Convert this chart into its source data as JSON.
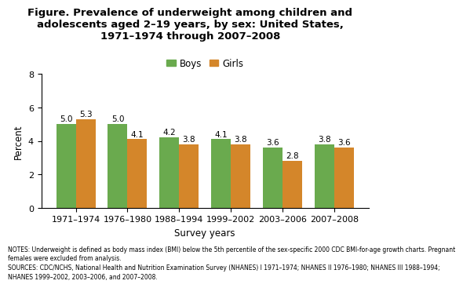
{
  "title": "Figure. Prevalence of underweight among children and\nadolescents aged 2–19 years, by sex: United States,\n1971–1974 through 2007–2008",
  "categories": [
    "1971–1974",
    "1976–1980",
    "1988–1994",
    "1999–2002",
    "2003–2006",
    "2007–2008"
  ],
  "boys": [
    5.0,
    5.0,
    4.2,
    4.1,
    3.6,
    3.8
  ],
  "girls": [
    5.3,
    4.1,
    3.8,
    3.8,
    2.8,
    3.6
  ],
  "boys_color": "#6aaa4e",
  "girls_color": "#d4862a",
  "xlabel": "Survey years",
  "ylabel": "Percent",
  "ylim": [
    0,
    8
  ],
  "yticks": [
    0,
    2,
    4,
    6,
    8
  ],
  "notes": "NOTES: Underweight is defined as body mass index (BMI) below the 5th percentile of the sex-specific 2000 CDC BMI-for-age growth charts. Pregnant\nfemales were excluded from analysis.\nSOURCES: CDC/NCHS, National Health and Nutrition Examination Survey (NHANES) I 1971–1974; NHANES II 1976–1980; NHANES III 1988–1994;\nNHANES 1999–2002, 2003–2006, and 2007–2008.",
  "bar_width": 0.38,
  "title_fontsize": 9.5,
  "label_fontsize": 8.5,
  "tick_fontsize": 8,
  "note_fontsize": 5.5,
  "value_fontsize": 7.5
}
